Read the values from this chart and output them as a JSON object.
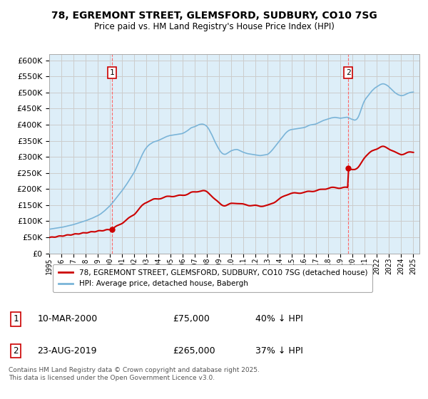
{
  "title": "78, EGREMONT STREET, GLEMSFORD, SUDBURY, CO10 7SG",
  "subtitle": "Price paid vs. HM Land Registry's House Price Index (HPI)",
  "hpi_color": "#7ab4d8",
  "hpi_fill_color": "#ddeef8",
  "price_color": "#cc0000",
  "background_color": "#ffffff",
  "grid_color": "#cccccc",
  "ylim": [
    0,
    620000
  ],
  "yticks": [
    0,
    50000,
    100000,
    150000,
    200000,
    250000,
    300000,
    350000,
    400000,
    450000,
    500000,
    550000,
    600000
  ],
  "legend_label_red": "78, EGREMONT STREET, GLEMSFORD, SUDBURY, CO10 7SG (detached house)",
  "legend_label_blue": "HPI: Average price, detached house, Babergh",
  "annotation1_label": "1",
  "annotation1_date": "10-MAR-2000",
  "annotation1_price": "£75,000",
  "annotation1_pct": "40% ↓ HPI",
  "annotation2_label": "2",
  "annotation2_date": "23-AUG-2019",
  "annotation2_price": "£265,000",
  "annotation2_pct": "37% ↓ HPI",
  "footer": "Contains HM Land Registry data © Crown copyright and database right 2025.\nThis data is licensed under the Open Government Licence v3.0.",
  "purchase1_year": 2000.19,
  "purchase1_price": 75000,
  "purchase2_year": 2019.64,
  "purchase2_price": 265000
}
